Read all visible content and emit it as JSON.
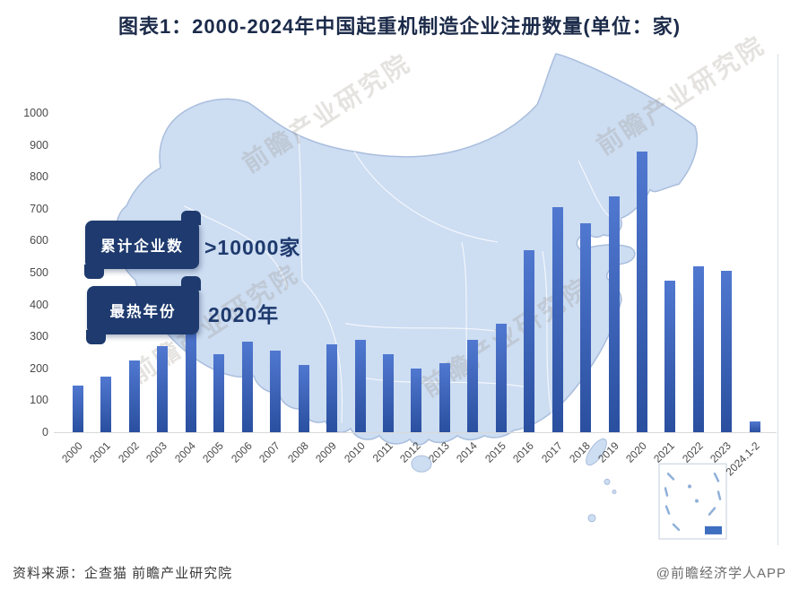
{
  "title": "图表1：2000-2024年中国起重机制造企业注册数量(单位：家)",
  "callouts": [
    {
      "label": "累计企业数",
      "value": ">10000家"
    },
    {
      "label": "最热年份",
      "value": "2020年"
    }
  ],
  "watermark_text": "前瞻产业研究院",
  "footer": {
    "source": "资料来源：企查猫 前瞻产业研究院",
    "credit": "@前瞻经济学人APP"
  },
  "colors": {
    "bar_gradient_top": "#5078d0",
    "bar_gradient_bottom": "#2a4f9f",
    "badge_navy": "#1e3a6e",
    "map_fill": "#cdddf2",
    "map_stroke": "#a9bedd",
    "title_color": "#1c2b4a"
  },
  "chart_data": {
    "type": "bar",
    "title": "图表1：2000-2024年中国起重机制造企业注册数量(单位：家)",
    "unit": "家",
    "categories": [
      "2000",
      "2001",
      "2002",
      "2003",
      "2004",
      "2005",
      "2006",
      "2007",
      "2008",
      "2009",
      "2010",
      "2011",
      "2012",
      "2013",
      "2014",
      "2015",
      "2016",
      "2017",
      "2018",
      "2019",
      "2020",
      "2021",
      "2022",
      "2023",
      "2024.1-2"
    ],
    "values": [
      145,
      175,
      225,
      270,
      340,
      245,
      285,
      255,
      210,
      275,
      290,
      245,
      200,
      215,
      290,
      340,
      570,
      705,
      655,
      740,
      880,
      475,
      520,
      505,
      35
    ],
    "xlabel": "",
    "ylabel": "",
    "ylim": [
      0,
      1000
    ],
    "ytick_step": 100,
    "grid": false,
    "legend": null,
    "annotations": [
      "累计企业数 >10000家",
      "最热年份 2020年"
    ]
  }
}
